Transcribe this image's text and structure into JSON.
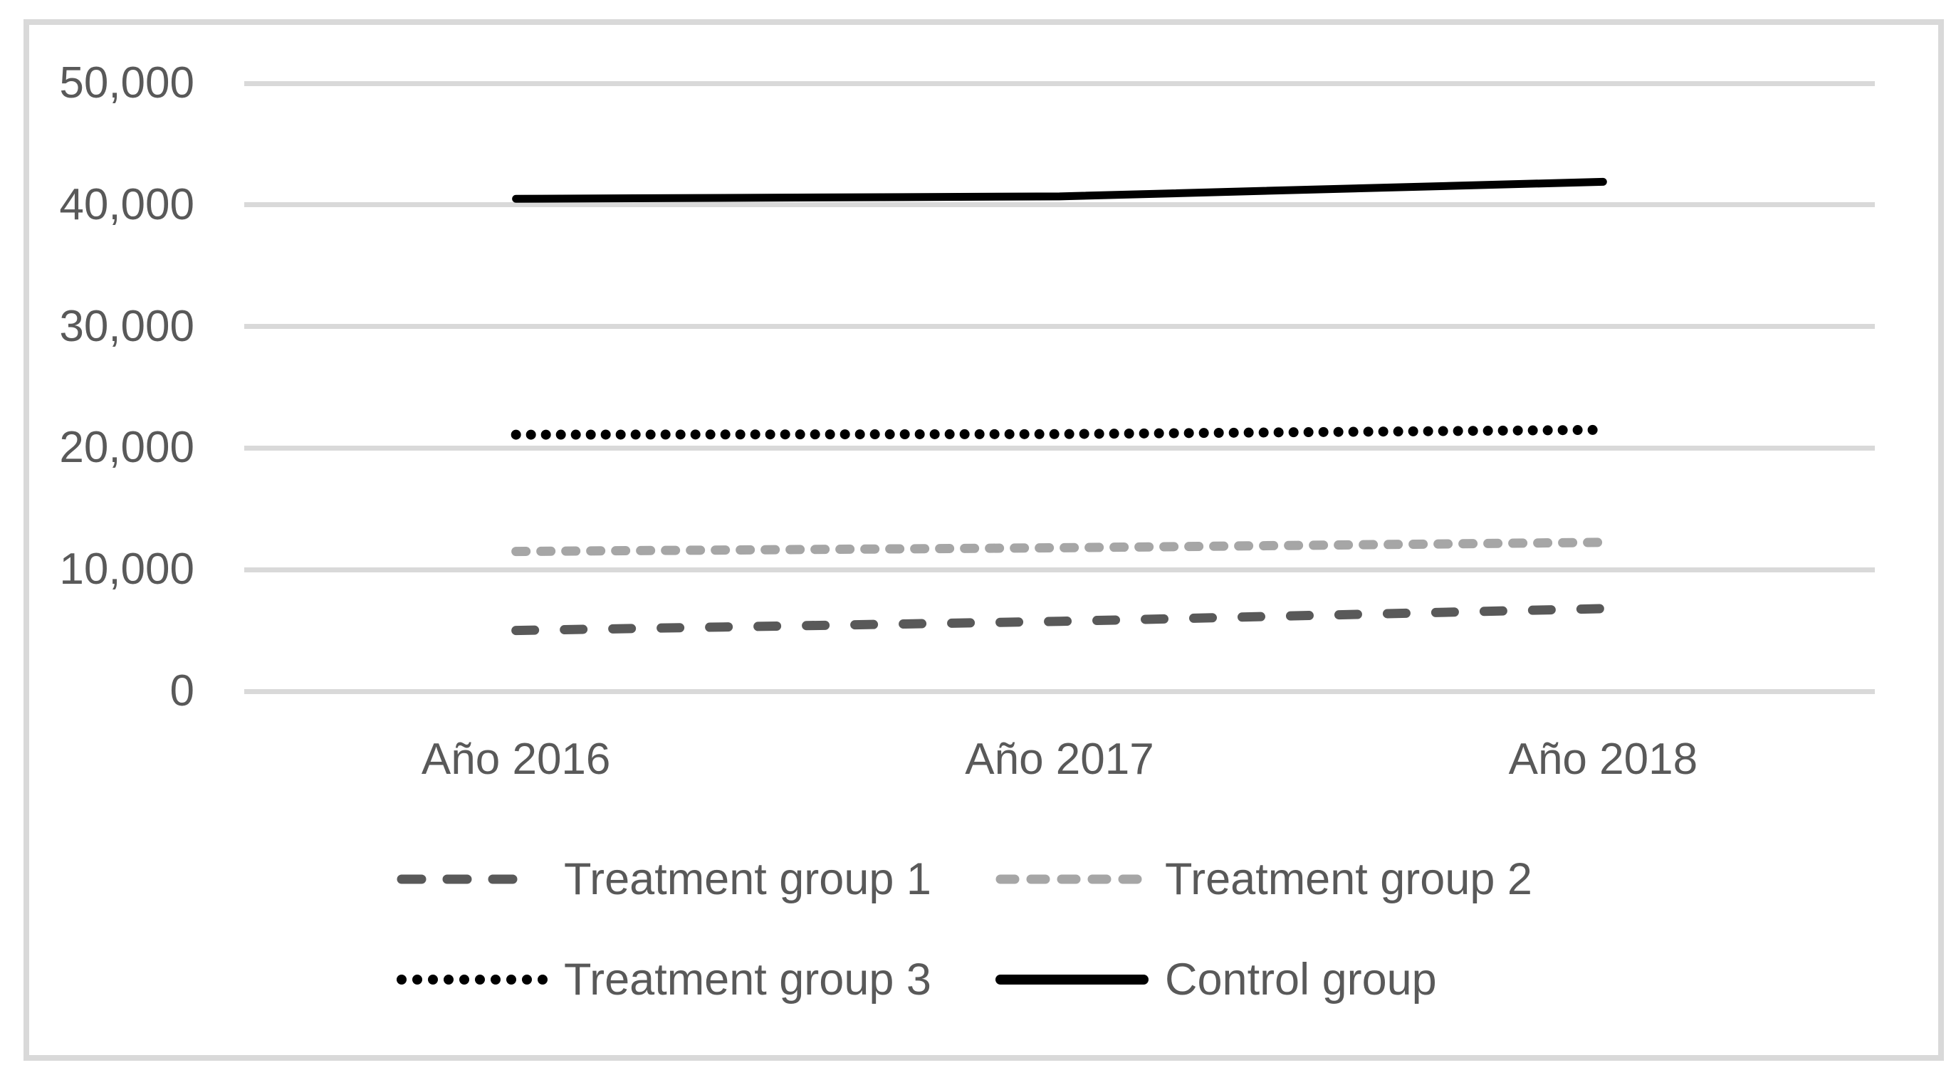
{
  "chart_data": {
    "type": "line",
    "title": "",
    "xlabel": "",
    "ylabel": "",
    "categories": [
      "Año 2016",
      "Año 2017",
      "Año 2018"
    ],
    "series": [
      {
        "name": "Treatment group 1",
        "values": [
          5000,
          5750,
          6800
        ],
        "color": "#595959",
        "line_style": "dashed"
      },
      {
        "name": "Treatment group 2",
        "values": [
          11500,
          11800,
          12250
        ],
        "color": "#A6A6A6",
        "line_style": "dashed-short"
      },
      {
        "name": "Treatment group 3",
        "values": [
          21100,
          21150,
          21500
        ],
        "color": "#000000",
        "line_style": "dotted"
      },
      {
        "name": "Control group",
        "values": [
          40500,
          40700,
          41900
        ],
        "color": "#000000",
        "line_style": "solid"
      }
    ],
    "ylim": [
      0,
      50000
    ],
    "ytick_step": 10000,
    "ytick_labels": [
      "0",
      "10,000",
      "20,000",
      "30,000",
      "40,000",
      "50,000"
    ],
    "grid": true,
    "legend_position": "bottom",
    "legend_rows": [
      [
        0,
        1
      ],
      [
        2,
        3
      ]
    ]
  },
  "colors": {
    "background": "#FFFFFF",
    "border": "#D9D9D9",
    "gridline": "#D9D9D9",
    "axis_text": "#595959",
    "legend_text": "#595959"
  }
}
